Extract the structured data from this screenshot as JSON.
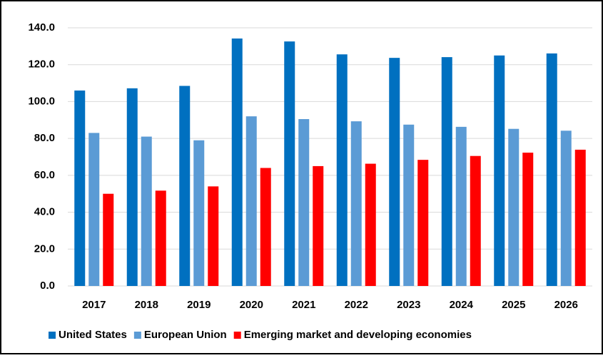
{
  "chart_data": {
    "type": "bar",
    "categories": [
      "2017",
      "2018",
      "2019",
      "2020",
      "2021",
      "2022",
      "2023",
      "2024",
      "2025",
      "2026"
    ],
    "series": [
      {
        "name": "United States",
        "color": "#0070c0",
        "values": [
          106.0,
          107.2,
          108.5,
          134.2,
          132.6,
          125.6,
          123.7,
          124.1,
          125.0,
          126.1
        ]
      },
      {
        "name": "European Union",
        "color": "#5b9bd5",
        "values": [
          83.0,
          81.0,
          79.0,
          92.0,
          90.5,
          89.3,
          87.5,
          86.3,
          85.2,
          84.2
        ]
      },
      {
        "name": "Emerging market and developing economies",
        "color": "#ff0000",
        "values": [
          50.0,
          51.7,
          54.0,
          64.0,
          65.0,
          66.3,
          68.4,
          70.5,
          72.3,
          73.9
        ]
      }
    ],
    "ylim": [
      0,
      140
    ],
    "yticks": [
      {
        "value": 0,
        "label": "0.0"
      },
      {
        "value": 20,
        "label": "20.0"
      },
      {
        "value": 40,
        "label": "40.0"
      },
      {
        "value": 60,
        "label": "60.0"
      },
      {
        "value": 80,
        "label": "80.0"
      },
      {
        "value": 100,
        "label": "100.0"
      },
      {
        "value": 120,
        "label": "120.0"
      },
      {
        "value": 140,
        "label": "140.0"
      }
    ],
    "grid": true,
    "legend": "bottom"
  }
}
